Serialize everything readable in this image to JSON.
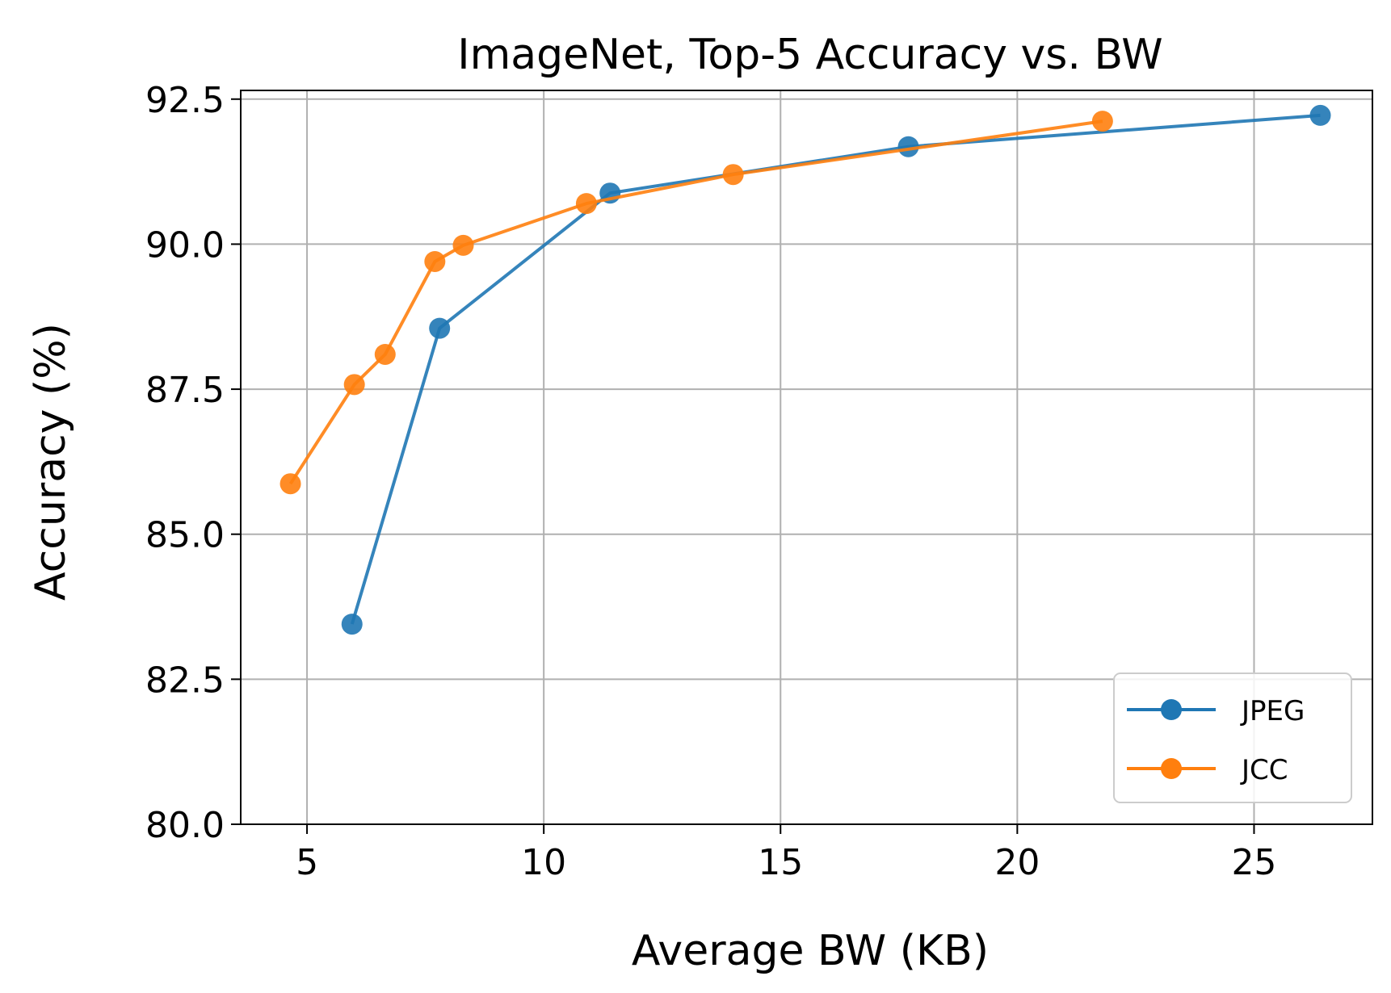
{
  "chart_data": {
    "type": "line",
    "title": "ImageNet, Top-5 Accuracy vs. BW",
    "xlabel": "Average BW (KB)",
    "ylabel": "Accuracy (%)",
    "xlim": [
      3.6,
      27.5
    ],
    "ylim": [
      80.0,
      92.65
    ],
    "xticks": [
      5,
      10,
      15,
      20,
      25
    ],
    "xtick_labels": [
      "5",
      "10",
      "15",
      "20",
      "25"
    ],
    "yticks": [
      80.0,
      82.5,
      85.0,
      87.5,
      90.0,
      92.5
    ],
    "ytick_labels": [
      "80.0",
      "82.5",
      "85.0",
      "87.5",
      "90.0",
      "92.5"
    ],
    "grid": true,
    "legend_position": "bottom-right",
    "series": [
      {
        "name": "JPEG",
        "color": "#1f77b4",
        "marker": "circle",
        "x": [
          5.95,
          7.8,
          11.4,
          17.7,
          26.4
        ],
        "y": [
          83.45,
          88.55,
          90.88,
          91.68,
          92.22
        ]
      },
      {
        "name": "JCC",
        "color": "#ff7f0e",
        "marker": "circle",
        "x": [
          4.65,
          6.0,
          6.65,
          7.7,
          8.3,
          10.9,
          14.0,
          21.8
        ],
        "y": [
          85.87,
          87.58,
          88.1,
          89.7,
          89.98,
          90.7,
          91.2,
          92.12
        ]
      }
    ]
  }
}
